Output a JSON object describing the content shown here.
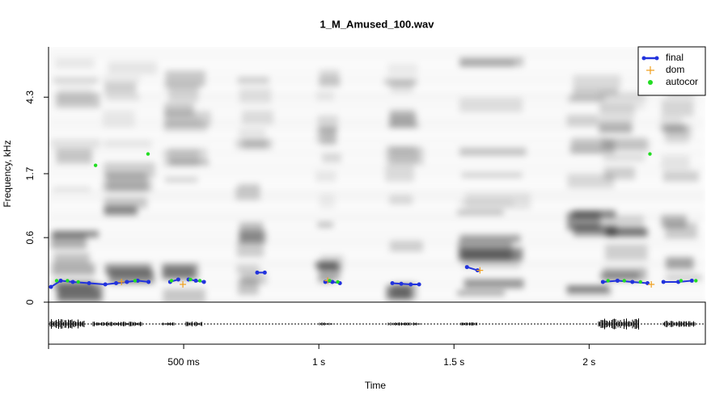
{
  "chart_data": {
    "type": "spectrogram",
    "title": "1_M_Amused_100.wav",
    "xlabel": "Time",
    "ylabel": "Frequency, kHz",
    "xlim": [
      0,
      2430
    ],
    "xticks": [
      {
        "value": 500,
        "label": "500 ms"
      },
      {
        "value": 1000,
        "label": "1 s"
      },
      {
        "value": 1500,
        "label": "1.5 s"
      },
      {
        "value": 2000,
        "label": "2 s"
      }
    ],
    "ylim": [
      0,
      7.4
    ],
    "yticks": [
      0,
      0.6,
      1.7,
      4.3
    ],
    "yscale": "mel",
    "legend": "topright",
    "series": [
      {
        "name": "final",
        "color": "#2233dd",
        "style": "line",
        "x": [
          9,
          45,
          90,
          150,
          210,
          250,
          290,
          330,
          370,
          null,
          450,
          480,
          null,
          518,
          545,
          575,
          null,
          772,
          800,
          null,
          1024,
          1050,
          1078,
          null,
          1272,
          1305,
          1340,
          1371,
          null,
          1548,
          1587,
          null,
          2051,
          2105,
          2160,
          2216,
          null,
          2275,
          2330,
          2380
        ],
        "values": [
          0.11,
          0.16,
          0.15,
          0.14,
          0.13,
          0.14,
          0.15,
          0.16,
          0.15,
          null,
          0.15,
          0.17,
          null,
          0.17,
          0.16,
          0.15,
          null,
          0.23,
          0.23,
          null,
          0.15,
          0.15,
          0.14,
          null,
          0.14,
          0.135,
          0.13,
          0.13,
          null,
          0.28,
          0.25,
          null,
          0.15,
          0.16,
          0.15,
          0.14,
          null,
          0.15,
          0.15,
          0.16
        ]
      },
      {
        "name": "dom",
        "color": "#f0a020",
        "style": "plus",
        "x": [
          270,
          497,
          1033,
          1596,
          2230
        ],
        "values": [
          0.15,
          0.13,
          0.16,
          0.25,
          0.13
        ]
      },
      {
        "name": "autocor",
        "color": "#22dd22",
        "style": "dot",
        "x": [
          30,
          70,
          110,
          174,
          320,
          368,
          455,
          525,
          560,
          1040,
          1070,
          2070,
          2130,
          2190,
          2225,
          2340,
          2395
        ],
        "values": [
          0.16,
          0.16,
          0.15,
          1.9,
          0.16,
          2.2,
          0.16,
          0.17,
          0.16,
          0.16,
          0.15,
          0.16,
          0.16,
          0.15,
          2.2,
          0.16,
          0.16
        ]
      }
    ]
  }
}
